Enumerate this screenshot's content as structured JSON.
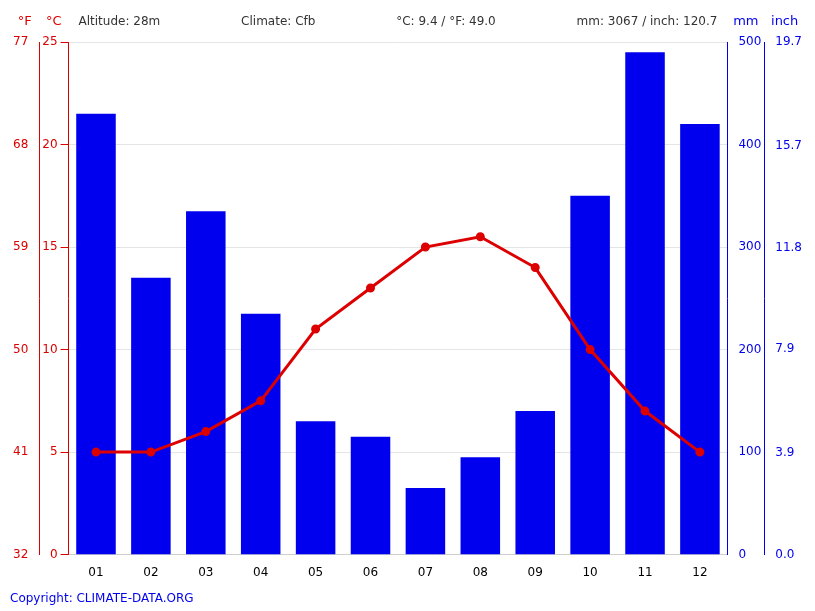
{
  "chart_data": {
    "type": "bar",
    "categories": [
      "01",
      "02",
      "03",
      "04",
      "05",
      "06",
      "07",
      "08",
      "09",
      "10",
      "11",
      "12"
    ],
    "series": [
      {
        "type": "bar",
        "color": "#0000ee",
        "axis": "y2",
        "values": [
          430,
          270,
          335,
          235,
          130,
          115,
          65,
          95,
          140,
          350,
          490,
          420
        ]
      },
      {
        "type": "line",
        "color": "#dd0000",
        "axis": "y",
        "marker": "circle",
        "values": [
          5.0,
          5.0,
          6.0,
          7.5,
          11.0,
          13.0,
          15.0,
          15.5,
          14.0,
          10.0,
          7.0,
          5.0
        ]
      }
    ],
    "ylabel": "°C",
    "ylim": [
      0,
      25
    ],
    "yticks": [
      0,
      5,
      10,
      15,
      20,
      25
    ],
    "y3label": "°F",
    "y3lim": [
      32,
      77
    ],
    "y3ticks": [
      32,
      41,
      50,
      59,
      68,
      77
    ],
    "y2label": "mm",
    "y2lim": [
      0,
      500
    ],
    "y2ticks": [
      0,
      100,
      200,
      300,
      400,
      500
    ],
    "y4label": "inch",
    "y4lim": [
      0,
      19.7
    ],
    "y4ticks": [
      {
        "value": 0,
        "label": "0.0"
      },
      3.9,
      7.9,
      11.8,
      15.7,
      19.7
    ],
    "grid": true,
    "annotations": [
      "Altitude: 28m",
      "Climate: Cfb",
      "°C: 9.4 / °F: 49.0",
      "mm: 3067 / inch: 120.7"
    ],
    "footnote": "Copyright: CLIMATE-DATA.ORG"
  }
}
